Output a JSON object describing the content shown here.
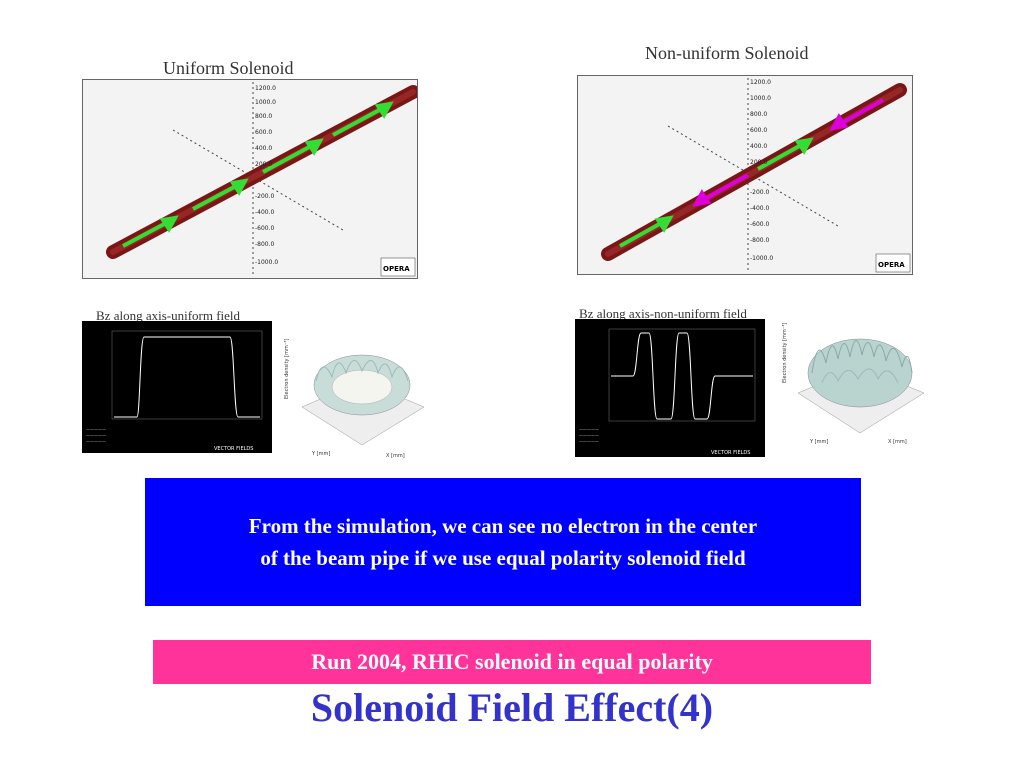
{
  "top_left": {
    "caption": "Uniform Solenoid",
    "axis_labels": [
      "1200.0",
      "1000.0",
      "800.0",
      "600.0",
      "400.0",
      "200.0",
      "-200.0",
      "-400.0",
      "-600.0",
      "-800.0",
      "-1000.0"
    ],
    "logo_text": "OPERA"
  },
  "top_right": {
    "caption": "Non-uniform Solenoid",
    "axis_labels": [
      "1200.0",
      "1000.0",
      "800.0",
      "600.0",
      "400.0",
      "200.0",
      "-200.0",
      "-400.0",
      "-600.0",
      "-800.0",
      "-1000.0"
    ],
    "logo_text": "OPERA"
  },
  "bottom_left": {
    "caption": "Bz along axis-uniform field",
    "logo_text": "VECTOR FIELDS"
  },
  "bottom_right": {
    "caption": "Bz along axis-non-uniform field",
    "logo_text": "VECTOR FIELDS"
  },
  "surface_left": {
    "z_label": "Electron density [mm⁻³]",
    "x_label": "X [mm]",
    "y_label": "Y [mm]"
  },
  "surface_right": {
    "z_label": "Electron density [mm⁻³]",
    "x_label": "X [mm]",
    "y_label": "Y [mm]"
  },
  "message_box": {
    "line1": "From the simulation, we can see no electron in the center",
    "line2": "of the beam pipe if we use equal polarity solenoid field"
  },
  "run_bar": {
    "text": "Run 2004,  RHIC solenoid in equal polarity"
  },
  "slide_title": "Solenoid Field Effect(4)",
  "colors": {
    "message_bg": "#0000ff",
    "run_bar_bg": "#ff3399",
    "title": "#3333cc",
    "pipe": "#8b1a1a",
    "arrow_green": "#33cc33",
    "arrow_magenta": "#cc00cc"
  }
}
